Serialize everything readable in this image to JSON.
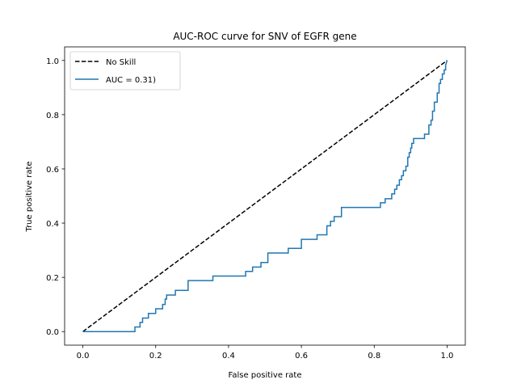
{
  "chart_data": {
    "type": "line",
    "title": "AUC-ROC curve for SNV of EGFR gene",
    "xlabel": "False positive rate",
    "ylabel": "True positive rate",
    "xlim": [
      -0.05,
      1.05
    ],
    "ylim": [
      -0.05,
      1.05
    ],
    "xticks": [
      0.0,
      0.2,
      0.4,
      0.6,
      0.8,
      1.0
    ],
    "yticks": [
      0.0,
      0.2,
      0.4,
      0.6,
      0.8,
      1.0
    ],
    "xtick_labels": [
      "0.0",
      "0.2",
      "0.4",
      "0.6",
      "0.8",
      "1.0"
    ],
    "ytick_labels": [
      "0.0",
      "0.2",
      "0.4",
      "0.6",
      "0.8",
      "1.0"
    ],
    "grid": false,
    "legend_position": "top-left",
    "series": [
      {
        "name": "No Skill",
        "color": "#000000",
        "style": "dashed",
        "x": [
          0.0,
          1.0
        ],
        "y": [
          0.0,
          1.0
        ]
      },
      {
        "name": "AUC = 0.31)",
        "color": "#1f77b4",
        "style": "solid",
        "x": [
          0.0,
          0.143,
          0.143,
          0.157,
          0.157,
          0.164,
          0.164,
          0.18,
          0.18,
          0.2,
          0.2,
          0.219,
          0.219,
          0.226,
          0.226,
          0.23,
          0.23,
          0.254,
          0.254,
          0.289,
          0.289,
          0.357,
          0.357,
          0.447,
          0.447,
          0.466,
          0.466,
          0.489,
          0.489,
          0.508,
          0.508,
          0.564,
          0.564,
          0.6,
          0.6,
          0.643,
          0.643,
          0.67,
          0.67,
          0.68,
          0.68,
          0.69,
          0.69,
          0.71,
          0.71,
          0.817,
          0.817,
          0.83,
          0.83,
          0.848,
          0.848,
          0.856,
          0.856,
          0.862,
          0.862,
          0.869,
          0.869,
          0.875,
          0.875,
          0.88,
          0.88,
          0.887,
          0.887,
          0.892,
          0.892,
          0.896,
          0.896,
          0.9,
          0.9,
          0.903,
          0.903,
          0.908,
          0.908,
          0.938,
          0.938,
          0.95,
          0.95,
          0.956,
          0.956,
          0.96,
          0.96,
          0.965,
          0.965,
          0.973,
          0.973,
          0.978,
          0.978,
          0.982,
          0.982,
          0.987,
          0.987,
          0.992,
          0.992,
          0.996,
          0.996,
          1.0
        ],
        "y": [
          0.0,
          0.0,
          0.017,
          0.017,
          0.034,
          0.034,
          0.05,
          0.05,
          0.067,
          0.067,
          0.084,
          0.084,
          0.1,
          0.1,
          0.12,
          0.12,
          0.135,
          0.135,
          0.152,
          0.152,
          0.188,
          0.188,
          0.205,
          0.205,
          0.222,
          0.222,
          0.238,
          0.238,
          0.255,
          0.255,
          0.29,
          0.29,
          0.307,
          0.307,
          0.34,
          0.34,
          0.357,
          0.357,
          0.39,
          0.39,
          0.407,
          0.407,
          0.424,
          0.424,
          0.458,
          0.458,
          0.475,
          0.475,
          0.49,
          0.49,
          0.508,
          0.508,
          0.525,
          0.525,
          0.54,
          0.54,
          0.56,
          0.56,
          0.575,
          0.575,
          0.593,
          0.593,
          0.61,
          0.61,
          0.643,
          0.643,
          0.66,
          0.66,
          0.677,
          0.677,
          0.694,
          0.694,
          0.712,
          0.712,
          0.728,
          0.728,
          0.762,
          0.762,
          0.78,
          0.78,
          0.813,
          0.813,
          0.846,
          0.846,
          0.88,
          0.88,
          0.915,
          0.915,
          0.93,
          0.93,
          0.95,
          0.95,
          0.965,
          0.965,
          0.982,
          1.0
        ]
      }
    ]
  }
}
